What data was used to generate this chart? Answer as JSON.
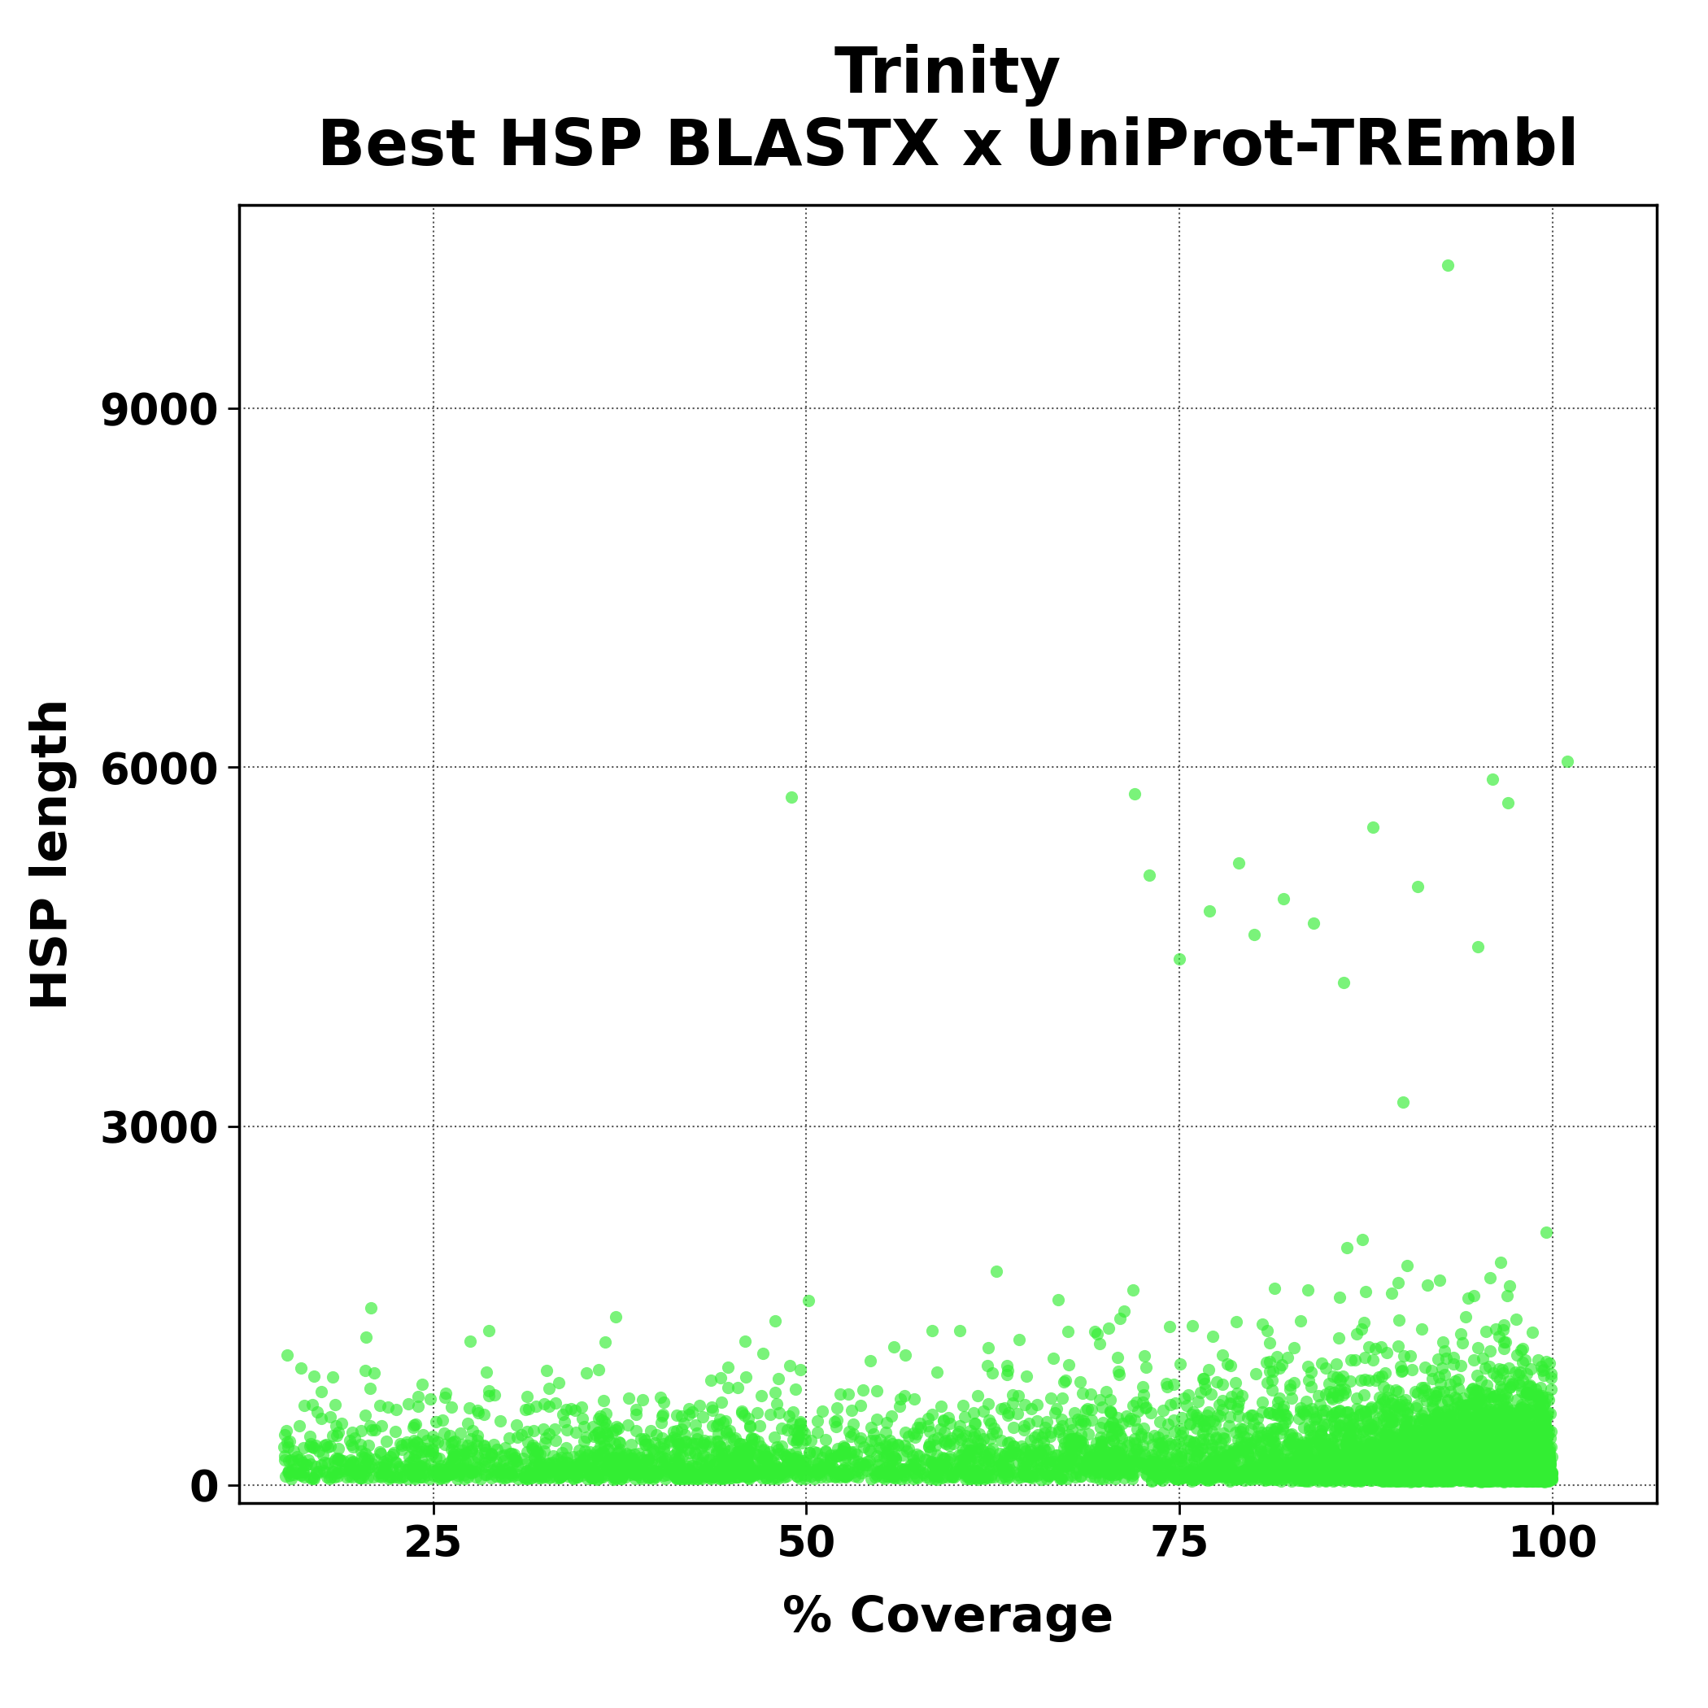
{
  "title_line1": "Trinity",
  "title_line2": "Best HSP BLASTX x UniProt-TREmbl",
  "xlabel": "% Coverage",
  "ylabel": "HSP length",
  "xlim": [
    12,
    107
  ],
  "ylim": [
    -150,
    10700
  ],
  "xticks": [
    25,
    50,
    75,
    100
  ],
  "yticks": [
    0,
    3000,
    6000,
    9000
  ],
  "scatter_color": "#33ee33",
  "scatter_alpha": 0.65,
  "scatter_size": 120,
  "contour_color": "#0a1a2a",
  "background_color": "#ffffff",
  "seed": 99,
  "n_points": 6000,
  "title_fontsize": 56,
  "label_fontsize": 44,
  "tick_fontsize": 38
}
